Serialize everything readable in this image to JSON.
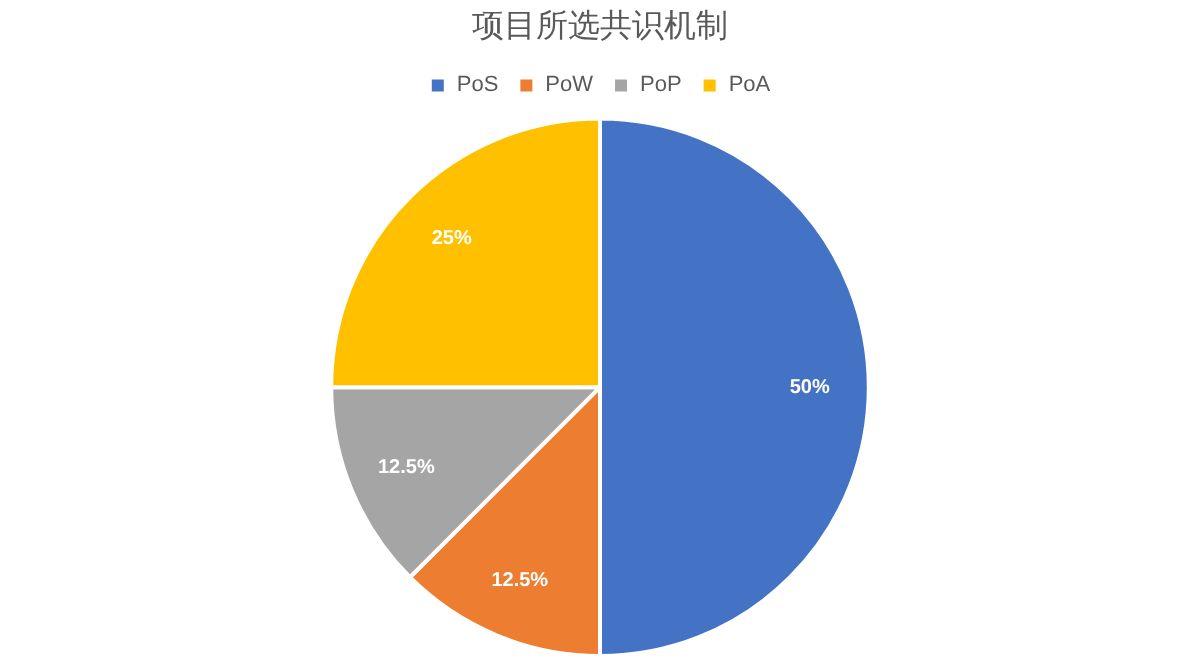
{
  "chart_data": {
    "type": "pie",
    "title": "项目所选共识机制",
    "categories": [
      "PoS",
      "PoW",
      "PoP",
      "PoA"
    ],
    "values": [
      50,
      12.5,
      12.5,
      25
    ],
    "colors": [
      "#4472c4",
      "#ed7d31",
      "#a5a5a5",
      "#ffc000"
    ],
    "value_labels": [
      "50%",
      "12.5%",
      "12.5%",
      "25%"
    ],
    "legend": "top"
  }
}
